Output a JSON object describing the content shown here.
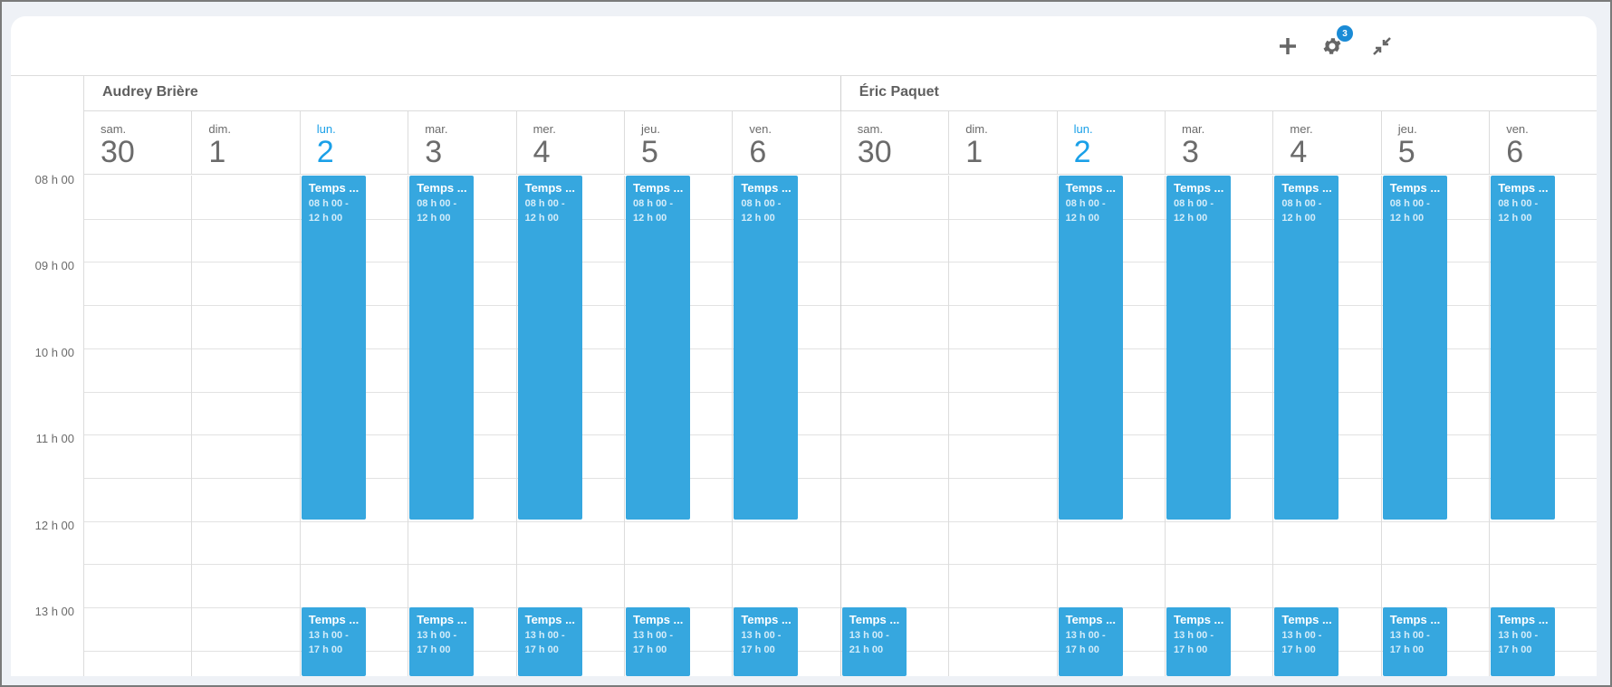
{
  "toolbar": {
    "add_icon": "plus-icon",
    "settings_icon": "gear-icon",
    "settings_badge": "3",
    "collapse_icon": "collapse-arrows-icon"
  },
  "colors": {
    "event": "#36a7df",
    "today": "#1aa0e8",
    "badge": "#1a8bd6"
  },
  "time_labels": [
    "08 h 00",
    "09 h 00",
    "10 h 00",
    "11 h 00",
    "12 h 00",
    "13 h 00"
  ],
  "people": [
    {
      "name": "Audrey Brière",
      "days": [
        {
          "name": "sam.",
          "num": "30",
          "today": false,
          "events": []
        },
        {
          "name": "dim.",
          "num": "1",
          "today": false,
          "events": []
        },
        {
          "name": "lun.",
          "num": "2",
          "today": true,
          "events": [
            {
              "title": "Temps ...",
              "start": "08 h 00",
              "end": "12 h 00"
            },
            {
              "title": "Temps ...",
              "start": "13 h 00",
              "end": "17 h 00"
            }
          ]
        },
        {
          "name": "mar.",
          "num": "3",
          "today": false,
          "events": [
            {
              "title": "Temps ...",
              "start": "08 h 00",
              "end": "12 h 00"
            },
            {
              "title": "Temps ...",
              "start": "13 h 00",
              "end": "17 h 00"
            }
          ]
        },
        {
          "name": "mer.",
          "num": "4",
          "today": false,
          "events": [
            {
              "title": "Temps ...",
              "start": "08 h 00",
              "end": "12 h 00"
            },
            {
              "title": "Temps ...",
              "start": "13 h 00",
              "end": "17 h 00"
            }
          ]
        },
        {
          "name": "jeu.",
          "num": "5",
          "today": false,
          "events": [
            {
              "title": "Temps ...",
              "start": "08 h 00",
              "end": "12 h 00"
            },
            {
              "title": "Temps ...",
              "start": "13 h 00",
              "end": "17 h 00"
            }
          ]
        },
        {
          "name": "ven.",
          "num": "6",
          "today": false,
          "events": [
            {
              "title": "Temps ...",
              "start": "08 h 00",
              "end": "12 h 00"
            },
            {
              "title": "Temps ...",
              "start": "13 h 00",
              "end": "17 h 00"
            }
          ]
        }
      ]
    },
    {
      "name": "Éric Paquet",
      "days": [
        {
          "name": "sam.",
          "num": "30",
          "today": false,
          "events": [
            {
              "title": "Temps ...",
              "start": "13 h 00",
              "end": "21 h 00"
            }
          ]
        },
        {
          "name": "dim.",
          "num": "1",
          "today": false,
          "events": []
        },
        {
          "name": "lun.",
          "num": "2",
          "today": true,
          "events": [
            {
              "title": "Temps ...",
              "start": "08 h 00",
              "end": "12 h 00"
            },
            {
              "title": "Temps ...",
              "start": "13 h 00",
              "end": "17 h 00"
            }
          ]
        },
        {
          "name": "mar.",
          "num": "3",
          "today": false,
          "events": [
            {
              "title": "Temps ...",
              "start": "08 h 00",
              "end": "12 h 00"
            },
            {
              "title": "Temps ...",
              "start": "13 h 00",
              "end": "17 h 00"
            }
          ]
        },
        {
          "name": "mer.",
          "num": "4",
          "today": false,
          "events": [
            {
              "title": "Temps ...",
              "start": "08 h 00",
              "end": "12 h 00"
            },
            {
              "title": "Temps ...",
              "start": "13 h 00",
              "end": "17 h 00"
            }
          ]
        },
        {
          "name": "jeu.",
          "num": "5",
          "today": false,
          "events": [
            {
              "title": "Temps ...",
              "start": "08 h 00",
              "end": "12 h 00"
            },
            {
              "title": "Temps ...",
              "start": "13 h 00",
              "end": "17 h 00"
            }
          ]
        },
        {
          "name": "ven.",
          "num": "6",
          "today": false,
          "events": [
            {
              "title": "Temps ...",
              "start": "08 h 00",
              "end": "12 h 00"
            },
            {
              "title": "Temps ...",
              "start": "13 h 00",
              "end": "17 h 00"
            }
          ]
        }
      ]
    }
  ]
}
